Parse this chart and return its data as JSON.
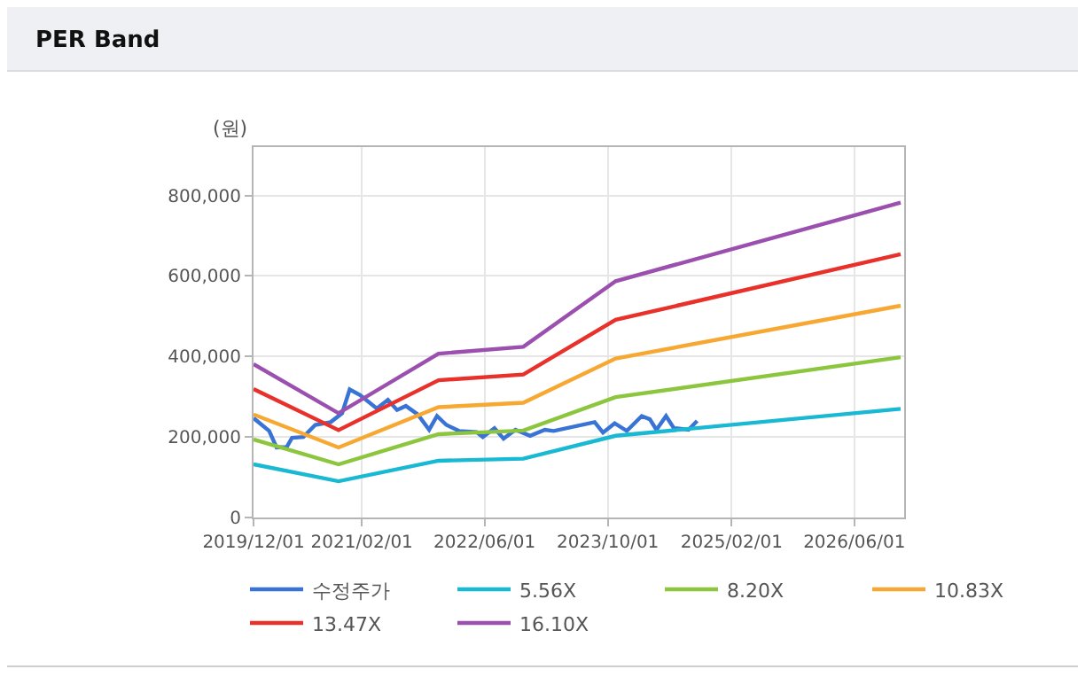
{
  "chart_data": {
    "type": "line",
    "title": "PER Band",
    "ylabel": "(원)",
    "xlim": [
      "2019-12-01",
      "2026-12-15"
    ],
    "xticks": [
      {
        "value": "2019-12-01",
        "label": "2019/12/01"
      },
      {
        "value": "2021-02-01",
        "label": "2021/02/01"
      },
      {
        "value": "2022-06-01",
        "label": "2022/06/01"
      },
      {
        "value": "2023-10-01",
        "label": "2023/10/01"
      },
      {
        "value": "2025-02-01",
        "label": "2025/02/01"
      },
      {
        "value": "2026-06-01",
        "label": "2026/06/01"
      }
    ],
    "ylim": [
      0,
      920000
    ],
    "yticks": [
      {
        "value": 0,
        "label": "0"
      },
      {
        "value": 200000,
        "label": "200,000"
      },
      {
        "value": 400000,
        "label": "400,000"
      },
      {
        "value": 600000,
        "label": "600,000"
      },
      {
        "value": 800000,
        "label": "800,000"
      }
    ],
    "grid": true,
    "legend": "bottom",
    "marker": "none",
    "line_style": "solid",
    "series": [
      {
        "name": "수정주가",
        "color": "#3a73d6",
        "x": [
          "2019-12-01",
          "2020-02-01",
          "2020-03-01",
          "2020-04-10",
          "2020-05-01",
          "2020-06-15",
          "2020-08-01",
          "2020-10-01",
          "2020-11-15",
          "2020-12-15",
          "2021-01-25",
          "2021-04-01",
          "2021-05-15",
          "2021-06-20",
          "2021-07-25",
          "2021-09-10",
          "2021-10-25",
          "2021-11-25",
          "2022-01-01",
          "2022-02-20",
          "2022-05-01",
          "2022-05-25",
          "2022-07-10",
          "2022-08-15",
          "2022-10-01",
          "2022-11-28",
          "2023-01-25",
          "2023-03-01",
          "2023-08-10",
          "2023-09-12",
          "2023-10-28",
          "2023-12-15",
          "2024-02-12",
          "2024-03-15",
          "2024-04-10",
          "2024-05-18",
          "2024-06-18",
          "2024-08-15",
          "2024-09-18"
        ],
        "values": [
          247000,
          215000,
          174000,
          175000,
          198000,
          200000,
          230000,
          237000,
          259000,
          318000,
          304000,
          271000,
          292000,
          267000,
          277000,
          256000,
          218000,
          252000,
          230000,
          215000,
          212000,
          200000,
          222000,
          196000,
          218000,
          203000,
          218000,
          215000,
          237000,
          211000,
          234000,
          215000,
          252000,
          244000,
          218000,
          252000,
          222000,
          218000,
          240000
        ]
      },
      {
        "name": "5.56X",
        "color": "#19b8d3",
        "x": [
          "2019-12-01",
          "2020-11-01",
          "2021-12-01",
          "2022-11-01",
          "2023-11-01",
          "2026-12-01"
        ],
        "values": [
          132000,
          90000,
          141000,
          146000,
          203000,
          270000
        ]
      },
      {
        "name": "8.20X",
        "color": "#8cc63f",
        "x": [
          "2019-12-01",
          "2020-11-01",
          "2021-12-01",
          "2022-11-01",
          "2023-11-01",
          "2026-12-01"
        ],
        "values": [
          194000,
          132000,
          207000,
          216000,
          299000,
          398000
        ]
      },
      {
        "name": "10.83X",
        "color": "#f7a832",
        "x": [
          "2019-12-01",
          "2020-11-01",
          "2021-12-01",
          "2022-11-01",
          "2023-11-01",
          "2026-12-01"
        ],
        "values": [
          256000,
          174000,
          274000,
          285000,
          395000,
          526000
        ]
      },
      {
        "name": "13.47X",
        "color": "#e8312a",
        "x": [
          "2019-12-01",
          "2020-11-01",
          "2021-12-01",
          "2022-11-01",
          "2023-11-01",
          "2026-12-01"
        ],
        "values": [
          319000,
          217000,
          341000,
          355000,
          491000,
          654000
        ]
      },
      {
        "name": "16.10X",
        "color": "#9b4fae",
        "x": [
          "2019-12-01",
          "2020-11-01",
          "2021-12-01",
          "2022-11-01",
          "2023-11-01",
          "2026-12-01"
        ],
        "values": [
          381000,
          259000,
          407000,
          424000,
          587000,
          782000
        ]
      }
    ]
  }
}
